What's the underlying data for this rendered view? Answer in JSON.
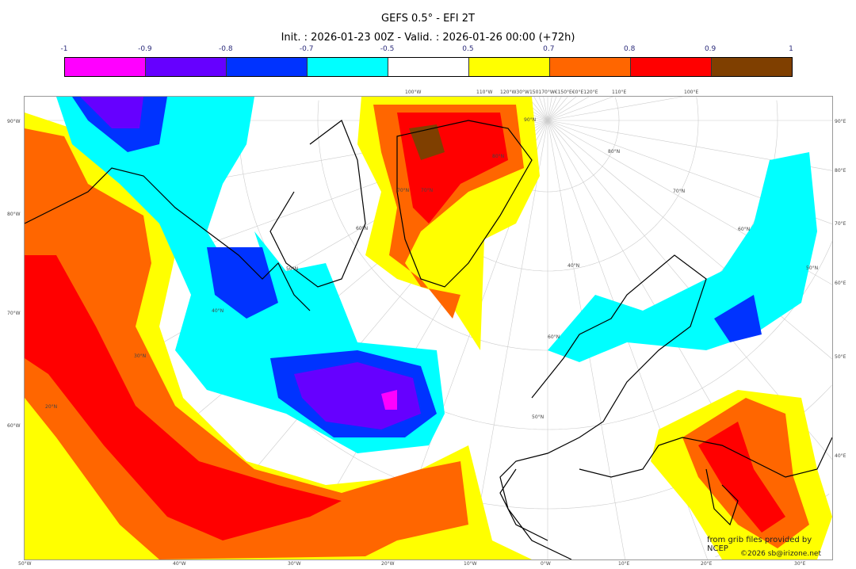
{
  "title": "GEFS 0.5° - EFI 2T",
  "subtitle": "Init. : 2026-01-23 00Z - Valid. : 2026-01-26 00:00 (+72h)",
  "colorbar": {
    "ticks": [
      "-1",
      "-0.9",
      "-0.8",
      "-0.7",
      "-0.5",
      "0.5",
      "0.7",
      "0.8",
      "0.9",
      "1"
    ],
    "colors": [
      "#ff00ff",
      "#6600ff",
      "#0033ff",
      "#00ffff",
      "#ffffff",
      "#ffff00",
      "#ff6600",
      "#ff0000",
      "#7f3f00"
    ]
  },
  "axes": {
    "left": [
      "90°W",
      "80°W",
      "70°W",
      "60°W"
    ],
    "bottom": [
      "50°W",
      "40°W",
      "30°W",
      "20°W",
      "10°W",
      "0°W",
      "10°E",
      "20°E",
      "30°E"
    ],
    "right": [
      "90°E",
      "80°E",
      "70°E",
      "60°E",
      "50°E",
      "40°E"
    ],
    "top": [
      "100°W",
      "110°W",
      "120°W30°W150170°W€150°E€0°E120°E",
      "110°E",
      "100°E"
    ],
    "inner": [
      "90°N",
      "80°N",
      "70°N",
      "60°N",
      "50°N",
      "40°N",
      "30°N",
      "20°N",
      "70°N",
      "60°N",
      "50°N",
      "80°N",
      "70°N",
      "60°N",
      "50°N",
      "40°N"
    ]
  },
  "credits": {
    "source": "from grib files provided by NCEP",
    "copyright": "©2026 sb@irizone.net"
  }
}
